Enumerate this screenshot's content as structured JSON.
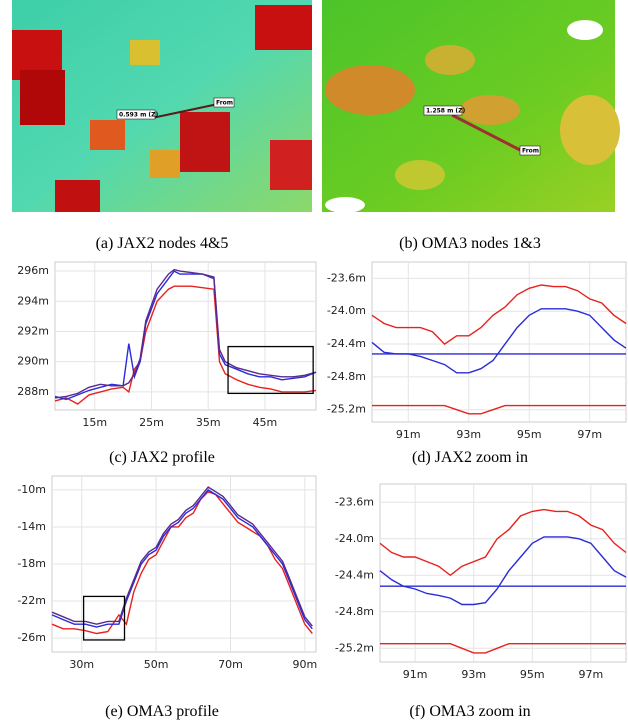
{
  "images": [
    {
      "caption": "(a) JAX2 nodes 4&5",
      "labels": [
        "0.593 m (Z)",
        "From"
      ]
    },
    {
      "caption": "(b) OMA3 nodes 1&3",
      "labels": [
        "1.258 m (Z)",
        "From"
      ]
    }
  ],
  "chart_data": [
    {
      "type": "line",
      "caption": "(c) JAX2 profile",
      "grid": true,
      "x": [
        8,
        10,
        12,
        14,
        16,
        18,
        20,
        21,
        22,
        23,
        24,
        26,
        28,
        29,
        30,
        32,
        34,
        36,
        37,
        38,
        40,
        42,
        44,
        46,
        48,
        50,
        52,
        54
      ],
      "series": [
        {
          "color": "#e8211d",
          "values": [
            287.4,
            287.6,
            287.2,
            287.8,
            288.0,
            288.2,
            288.3,
            288.0,
            289.5,
            290.0,
            292.0,
            294.0,
            294.8,
            295.0,
            295.0,
            295.0,
            294.9,
            294.8,
            290.0,
            289.2,
            288.8,
            288.5,
            288.3,
            288.2,
            288.0,
            288.0,
            288.0,
            288.1
          ]
        },
        {
          "color": "#2b2bd8",
          "values": [
            287.7,
            287.5,
            287.8,
            288.1,
            288.3,
            288.5,
            288.4,
            291.2,
            289.0,
            290.0,
            292.5,
            294.5,
            295.5,
            296.0,
            295.8,
            295.8,
            295.8,
            295.5,
            290.5,
            289.8,
            289.5,
            289.2,
            289.0,
            289.0,
            288.8,
            288.9,
            289.0,
            289.3
          ]
        },
        {
          "color": "#5a2a8c",
          "values": [
            287.6,
            287.7,
            287.9,
            288.3,
            288.5,
            288.4,
            288.4,
            288.6,
            289.2,
            290.2,
            292.7,
            294.8,
            295.8,
            296.1,
            296.0,
            295.9,
            295.8,
            295.6,
            290.8,
            290.0,
            289.6,
            289.4,
            289.2,
            289.1,
            289.0,
            289.0,
            289.1,
            289.3
          ]
        }
      ],
      "xlim": [
        8,
        54
      ],
      "ylim": [
        286.8,
        296.6
      ],
      "xticks": [
        {
          "value": 15,
          "label": "15m"
        },
        {
          "value": 25,
          "label": "25m"
        },
        {
          "value": 35,
          "label": "35m"
        },
        {
          "value": 45,
          "label": "45m"
        }
      ],
      "yticks": [
        {
          "value": 288,
          "label": "288m"
        },
        {
          "value": 290,
          "label": "290m"
        },
        {
          "value": 292,
          "label": "292m"
        },
        {
          "value": 294,
          "label": "294m"
        },
        {
          "value": 296,
          "label": "296m"
        }
      ],
      "zoom_box": {
        "xlim": [
          38.5,
          53.5
        ],
        "ylim": [
          287.9,
          291
        ]
      }
    },
    {
      "type": "line",
      "caption": "(d) JAX2 zoom in",
      "grid": true,
      "x": [
        89.8,
        90.2,
        90.6,
        91,
        91.4,
        91.8,
        92.2,
        92.6,
        93,
        93.4,
        93.8,
        94.2,
        94.6,
        95,
        95.4,
        95.8,
        96.2,
        96.6,
        97,
        97.4,
        97.8,
        98.2
      ],
      "series": [
        {
          "color": "#e8211d",
          "values": [
            -24.05,
            -24.15,
            -24.2,
            -24.2,
            -24.2,
            -24.25,
            -24.4,
            -24.3,
            -24.3,
            -24.2,
            -24.05,
            -23.95,
            -23.8,
            -23.72,
            -23.68,
            -23.7,
            -23.7,
            -23.75,
            -23.85,
            -23.9,
            -24.05,
            -24.15
          ]
        },
        {
          "color": "#2b2bd8",
          "values": [
            -24.38,
            -24.5,
            -24.52,
            -24.52,
            -24.55,
            -24.6,
            -24.65,
            -24.75,
            -24.75,
            -24.7,
            -24.6,
            -24.4,
            -24.2,
            -24.05,
            -23.97,
            -23.97,
            -23.97,
            -24.0,
            -24.05,
            -24.2,
            -24.35,
            -24.45
          ]
        },
        {
          "color": "#2b2bd8",
          "values": [
            -24.52,
            -24.52,
            -24.52,
            -24.52,
            -24.52,
            -24.52,
            -24.52,
            -24.52,
            -24.52,
            -24.52,
            -24.52,
            -24.52,
            -24.52,
            -24.52,
            -24.52,
            -24.52,
            -24.52,
            -24.52,
            -24.52,
            -24.52,
            -24.52,
            -24.52
          ]
        },
        {
          "color": "#e8211d",
          "values": [
            -25.15,
            -25.15,
            -25.15,
            -25.15,
            -25.15,
            -25.15,
            -25.15,
            -25.2,
            -25.25,
            -25.25,
            -25.2,
            -25.15,
            -25.15,
            -25.15,
            -25.15,
            -25.15,
            -25.15,
            -25.15,
            -25.15,
            -25.15,
            -25.15,
            -25.15
          ]
        }
      ],
      "xlim": [
        89.8,
        98.2
      ],
      "ylim": [
        -25.35,
        -23.4
      ],
      "xticks": [
        {
          "value": 91,
          "label": "91m"
        },
        {
          "value": 93,
          "label": "93m"
        },
        {
          "value": 95,
          "label": "95m"
        },
        {
          "value": 97,
          "label": "97m"
        }
      ],
      "yticks": [
        {
          "value": -23.6,
          "label": "-23.6m"
        },
        {
          "value": -24.0,
          "label": "-24.0m"
        },
        {
          "value": -24.4,
          "label": "-24.4m"
        },
        {
          "value": -24.8,
          "label": "-24.8m"
        },
        {
          "value": -25.2,
          "label": "-25.2m"
        }
      ]
    },
    {
      "type": "line",
      "caption": "(e) OMA3 profile",
      "grid": true,
      "x": [
        22,
        25,
        28,
        31,
        34,
        37,
        40,
        42,
        44,
        46,
        48,
        50,
        52,
        54,
        56,
        58,
        60,
        62,
        64,
        66,
        68,
        70,
        72,
        74,
        76,
        78,
        80,
        82,
        84,
        86,
        88,
        90,
        92
      ],
      "series": [
        {
          "color": "#e8211d",
          "values": [
            -24.5,
            -25,
            -25,
            -25.2,
            -25.5,
            -25.3,
            -23.5,
            -24.5,
            -21,
            -19,
            -17.5,
            -17,
            -15.5,
            -14,
            -14,
            -13,
            -12.5,
            -11,
            -10.2,
            -10.5,
            -11.5,
            -12.5,
            -13.5,
            -14,
            -14.5,
            -15,
            -16,
            -17.5,
            -18.5,
            -20.5,
            -22.5,
            -24.5,
            -25.5
          ]
        },
        {
          "color": "#2b2bd8",
          "values": [
            -23.5,
            -24,
            -24.5,
            -24.5,
            -24.8,
            -24.5,
            -24.5,
            -22,
            -20,
            -18,
            -17,
            -16.5,
            -15,
            -14,
            -13.5,
            -12.5,
            -12,
            -11,
            -10,
            -10.5,
            -11,
            -12,
            -13,
            -13.5,
            -14,
            -15,
            -16,
            -17,
            -18,
            -20,
            -22,
            -24,
            -25
          ]
        },
        {
          "color": "#5a2a8c",
          "values": [
            -23.2,
            -23.7,
            -24.2,
            -24.2,
            -24.5,
            -24.2,
            -24.2,
            -21.7,
            -19.7,
            -17.7,
            -16.7,
            -16.2,
            -14.7,
            -13.7,
            -13.2,
            -12.2,
            -11.7,
            -10.7,
            -9.7,
            -10.2,
            -10.7,
            -11.7,
            -12.7,
            -13.2,
            -13.7,
            -14.7,
            -15.7,
            -16.7,
            -17.7,
            -19.7,
            -21.7,
            -23.7,
            -24.7
          ]
        }
      ],
      "xlim": [
        22,
        93
      ],
      "ylim": [
        -27.5,
        -8.5
      ],
      "xticks": [
        {
          "value": 30,
          "label": "30m"
        },
        {
          "value": 50,
          "label": "50m"
        },
        {
          "value": 70,
          "label": "70m"
        },
        {
          "value": 90,
          "label": "90m"
        }
      ],
      "yticks": [
        {
          "value": -10,
          "label": "-10m"
        },
        {
          "value": -14,
          "label": "-14m"
        },
        {
          "value": -18,
          "label": "-18m"
        },
        {
          "value": -22,
          "label": "-22m"
        },
        {
          "value": -26,
          "label": "-26m"
        }
      ],
      "zoom_box": {
        "xlim": [
          30.5,
          41.5
        ],
        "ylim": [
          -26.2,
          -21.5
        ]
      }
    },
    {
      "type": "line",
      "caption": "(f) OMA3 zoom in",
      "grid": true,
      "x": [
        89.8,
        90.2,
        90.6,
        91,
        91.4,
        91.8,
        92.2,
        92.6,
        93,
        93.4,
        93.8,
        94.2,
        94.6,
        95,
        95.4,
        95.8,
        96.2,
        96.6,
        97,
        97.4,
        97.8,
        98.2
      ],
      "series": [
        {
          "color": "#e8211d",
          "values": [
            -24.05,
            -24.15,
            -24.2,
            -24.2,
            -24.25,
            -24.3,
            -24.4,
            -24.3,
            -24.25,
            -24.2,
            -24.0,
            -23.9,
            -23.75,
            -23.7,
            -23.68,
            -23.7,
            -23.7,
            -23.75,
            -23.85,
            -23.9,
            -24.05,
            -24.15
          ]
        },
        {
          "color": "#2b2bd8",
          "values": [
            -24.35,
            -24.45,
            -24.52,
            -24.55,
            -24.6,
            -24.62,
            -24.65,
            -24.72,
            -24.72,
            -24.7,
            -24.55,
            -24.35,
            -24.2,
            -24.05,
            -23.98,
            -23.98,
            -23.98,
            -24.0,
            -24.05,
            -24.2,
            -24.35,
            -24.42
          ]
        },
        {
          "color": "#2b2bd8",
          "values": [
            -24.52,
            -24.52,
            -24.52,
            -24.52,
            -24.52,
            -24.52,
            -24.52,
            -24.52,
            -24.52,
            -24.52,
            -24.52,
            -24.52,
            -24.52,
            -24.52,
            -24.52,
            -24.52,
            -24.52,
            -24.52,
            -24.52,
            -24.52,
            -24.52,
            -24.52
          ]
        },
        {
          "color": "#e8211d",
          "values": [
            -25.15,
            -25.15,
            -25.15,
            -25.15,
            -25.15,
            -25.15,
            -25.15,
            -25.2,
            -25.25,
            -25.25,
            -25.2,
            -25.15,
            -25.15,
            -25.15,
            -25.15,
            -25.15,
            -25.15,
            -25.15,
            -25.15,
            -25.15,
            -25.15,
            -25.15
          ]
        }
      ],
      "xlim": [
        89.8,
        98.2
      ],
      "ylim": [
        -25.35,
        -23.4
      ],
      "xticks": [
        {
          "value": 91,
          "label": "91m"
        },
        {
          "value": 93,
          "label": "93m"
        },
        {
          "value": 95,
          "label": "95m"
        },
        {
          "value": 97,
          "label": "97m"
        }
      ],
      "yticks": [
        {
          "value": -23.6,
          "label": "-23.6m"
        },
        {
          "value": -24.0,
          "label": "-24.0m"
        },
        {
          "value": -24.4,
          "label": "-24.4m"
        },
        {
          "value": -24.8,
          "label": "-24.8m"
        },
        {
          "value": -25.2,
          "label": "-25.2m"
        }
      ]
    }
  ]
}
